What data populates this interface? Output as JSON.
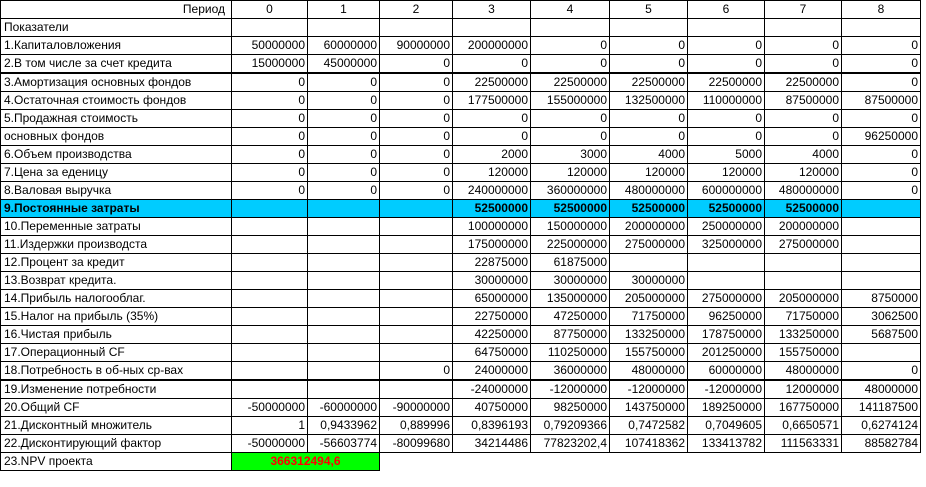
{
  "header": {
    "period_label": "Период",
    "periods": [
      "0",
      "1",
      "2",
      "3",
      "4",
      "5",
      "6",
      "7",
      "8"
    ]
  },
  "subheader": "Показатели",
  "rows": [
    {
      "label": "1.Капиталовложения",
      "values": [
        "50000000",
        "60000000",
        "90000000",
        "200000000",
        "0",
        "0",
        "0",
        "0",
        "0"
      ]
    },
    {
      "label": "2.В том числе за счет кредита",
      "values": [
        "15000000",
        "45000000",
        "0",
        "0",
        "0",
        "0",
        "0",
        "0",
        "0"
      ]
    },
    {
      "label": "3.Амортизация основных фондов",
      "values": [
        "0",
        "0",
        "0",
        "22500000",
        "22500000",
        "22500000",
        "22500000",
        "22500000",
        "0"
      ]
    },
    {
      "label": "4.Остаточная стоимость фондов",
      "values": [
        "0",
        "0",
        "0",
        "177500000",
        "155000000",
        "132500000",
        "110000000",
        "87500000",
        "87500000"
      ]
    },
    {
      "label": "5.Продажная стоимость",
      "values": [
        "0",
        "0",
        "0",
        "0",
        "0",
        "0",
        "0",
        "0",
        "0"
      ]
    },
    {
      "label": " основных фондов",
      "values": [
        "0",
        "0",
        "0",
        "0",
        "0",
        "0",
        "0",
        "0",
        "96250000"
      ]
    },
    {
      "label": "6.Объем производства",
      "values": [
        "0",
        "0",
        "0",
        "2000",
        "3000",
        "4000",
        "5000",
        "4000",
        "0"
      ]
    },
    {
      "label": "7.Цена за еденицу",
      "values": [
        "0",
        "0",
        "0",
        "120000",
        "120000",
        "120000",
        "120000",
        "120000",
        "0"
      ]
    },
    {
      "label": "8.Валовая выручка",
      "values": [
        "0",
        "0",
        "0",
        "240000000",
        "360000000",
        "480000000",
        "600000000",
        "480000000",
        "0"
      ]
    },
    {
      "label": "9.Постоянные затраты",
      "values": [
        "",
        "",
        "",
        "52500000",
        "52500000",
        "52500000",
        "52500000",
        "52500000",
        ""
      ],
      "highlight": true
    },
    {
      "label": "10.Переменные затраты",
      "values": [
        "",
        "",
        "",
        "100000000",
        "150000000",
        "200000000",
        "250000000",
        "200000000",
        ""
      ]
    },
    {
      "label": "11.Издержки производста",
      "values": [
        "",
        "",
        "",
        "175000000",
        "225000000",
        "275000000",
        "325000000",
        "275000000",
        ""
      ]
    },
    {
      "label": "12.Процент за кредит",
      "values": [
        "",
        "",
        "",
        "22875000",
        "61875000",
        "",
        "",
        "",
        ""
      ]
    },
    {
      "label": "13.Возврат кредита.",
      "values": [
        "",
        "",
        "",
        "30000000",
        "30000000",
        "30000000",
        "",
        "",
        ""
      ]
    },
    {
      "label": "14.Прибыль налогооблаг.",
      "values": [
        "",
        "",
        "",
        "65000000",
        "135000000",
        "205000000",
        "275000000",
        "205000000",
        "8750000"
      ]
    },
    {
      "label": "15.Налог на прибыль (35%)",
      "values": [
        "",
        "",
        "",
        "22750000",
        "47250000",
        "71750000",
        "96250000",
        "71750000",
        "3062500"
      ]
    },
    {
      "label": "16.Чистая прибыль",
      "values": [
        "",
        "",
        "",
        "42250000",
        "87750000",
        "133250000",
        "178750000",
        "133250000",
        "5687500"
      ]
    },
    {
      "label": "17.Операционный CF",
      "values": [
        "",
        "",
        "",
        "64750000",
        "110250000",
        "155750000",
        "201250000",
        "155750000",
        ""
      ]
    },
    {
      "label": "18.Потребность в об-ных ср-вах",
      "values": [
        "",
        "",
        "0",
        "24000000",
        "36000000",
        "48000000",
        "60000000",
        "48000000",
        "0"
      ]
    },
    {
      "label": "19.Изменение потребности",
      "values": [
        "",
        "",
        "",
        "-24000000",
        "-12000000",
        "-12000000",
        "-12000000",
        "12000000",
        "48000000"
      ]
    },
    {
      "label": "20.Общий CF",
      "values": [
        "-50000000",
        "-60000000",
        "-90000000",
        "40750000",
        "98250000",
        "143750000",
        "189250000",
        "167750000",
        "141187500"
      ]
    },
    {
      "label": "21.Дисконтный множитель",
      "values": [
        "1",
        "0,9433962",
        "0,889996",
        "0,8396193",
        "0,79209366",
        "0,7472582",
        "0,7049605",
        "0,6650571",
        "0,6274124"
      ]
    },
    {
      "label": "22.Дисконтирующий фактор",
      "values": [
        "-50000000",
        "-56603774",
        "-80099680",
        "34214486",
        "77823202,4",
        "107418362",
        "133413782",
        "111563331",
        "88582784"
      ]
    }
  ],
  "npv": {
    "label": "23.NPV проекта",
    "value": "366312494,6"
  }
}
